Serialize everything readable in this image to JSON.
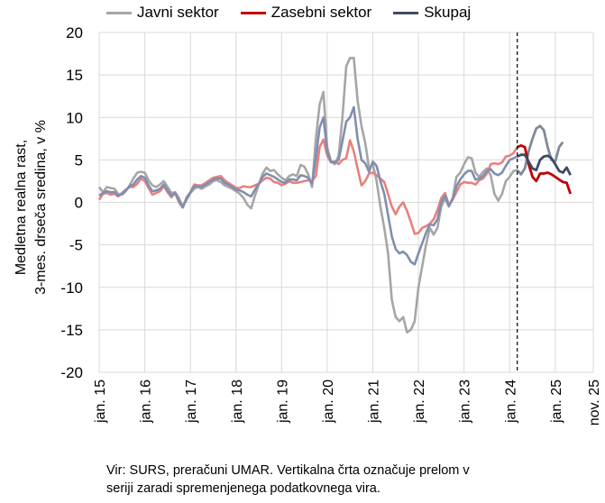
{
  "legend": {
    "javni": "Javni sektor",
    "zasebni": "Zasebni sektor",
    "skupaj": "Skupaj"
  },
  "ylabel_line1": "Medletna realna rast,",
  "ylabel_line2": "3-mes. drseča sredina, v %",
  "source_line1": "Vir: SURS, preračuni UMAR. Vertikalna črta označuje prelom v",
  "source_line2": "seriji zaradi spremenjenega podatkovnega vira.",
  "colors": {
    "javni_old": "#a6a6a6",
    "javni_new": "#808a99",
    "zasebni_old": "#e8817d",
    "zasebni_new": "#c00000",
    "skupaj_old": "#7f8fb0",
    "skupaj_new": "#3f4a66",
    "legend_javni": "#a6a6a6",
    "legend_zasebni": "#c00000",
    "legend_skupaj": "#3f4a66"
  },
  "chart_data": {
    "type": "line",
    "xlabel": "",
    "ylabel": "Medletna realna rast, 3-mes. drseča sredina, v %",
    "ylim": [
      -20,
      20
    ],
    "yticks": [
      20,
      15,
      10,
      5,
      0,
      -5,
      -10,
      -15,
      -20
    ],
    "x_start": "2015-01",
    "x_end": "2025-11",
    "xtick_labels": [
      "jan. 15",
      "jan. 16",
      "jan. 17",
      "jan. 18",
      "jan. 19",
      "jan. 20",
      "jan. 21",
      "jan. 22",
      "jan. 23",
      "jan. 24",
      "jan. 25",
      "nov. 25"
    ],
    "xtick_dates": [
      "2015-01",
      "2016-01",
      "2017-01",
      "2018-01",
      "2019-01",
      "2020-01",
      "2021-01",
      "2022-01",
      "2023-01",
      "2024-01",
      "2025-01",
      "2025-11"
    ],
    "break_date": "2024-03",
    "series": [
      {
        "name": "Javni sektor",
        "color_key": "javni",
        "values": [
          1.8,
          1.2,
          1.8,
          1.7,
          1.6,
          1.0,
          0.9,
          1.3,
          2.0,
          2.8,
          3.5,
          3.6,
          3.5,
          2.6,
          2.0,
          1.8,
          2.1,
          2.5,
          1.8,
          1.1,
          1.2,
          0.5,
          -0.5,
          0.3,
          1.1,
          1.6,
          1.8,
          1.6,
          1.9,
          2.1,
          2.5,
          2.6,
          2.4,
          2.0,
          1.8,
          1.6,
          1.3,
          1.0,
          0.5,
          -0.3,
          -0.7,
          0.8,
          2.1,
          3.4,
          4.1,
          3.7,
          3.8,
          3.3,
          2.9,
          2.6,
          3.1,
          3.3,
          3.1,
          4.4,
          4.2,
          3.3,
          1.8,
          7.5,
          11.5,
          13.0,
          6.5,
          4.8,
          4.5,
          5.5,
          10.0,
          16.0,
          17.0,
          17.0,
          12.0,
          9.0,
          7.0,
          4.0,
          4.5,
          2.5,
          -0.5,
          -3.0,
          -6.0,
          -11.5,
          -13.5,
          -14.0,
          -13.5,
          -15.3,
          -15.0,
          -14.0,
          -10.0,
          -7.5,
          -5.0,
          -3.0,
          -3.8,
          -3.0,
          -0.5,
          0.5,
          -0.5,
          0.5,
          3.0,
          3.5,
          4.5,
          5.3,
          5.2,
          3.5,
          3.0,
          3.6,
          4.0,
          3.2,
          1.0,
          0.2,
          1.0,
          2.5,
          3.0,
          3.7,
          3.8,
          3.3,
          4.0,
          6.0,
          7.5,
          8.7,
          9.0,
          8.5,
          6.5,
          5.0,
          4.8,
          6.5,
          7.1
        ]
      },
      {
        "name": "Zasebni sektor",
        "color_key": "zasebni",
        "values": [
          0.3,
          1.0,
          1.1,
          0.9,
          1.0,
          0.7,
          1.1,
          1.5,
          1.8,
          1.8,
          2.2,
          2.8,
          2.5,
          1.7,
          0.9,
          1.1,
          1.3,
          1.9,
          1.2,
          0.6,
          1.1,
          0.0,
          -0.6,
          0.6,
          1.2,
          2.1,
          2.0,
          2.0,
          2.3,
          2.6,
          2.9,
          3.0,
          3.1,
          2.6,
          2.3,
          2.0,
          1.7,
          1.7,
          1.9,
          1.8,
          1.8,
          2.0,
          2.2,
          2.6,
          2.9,
          2.8,
          2.4,
          2.3,
          2.0,
          2.2,
          2.5,
          2.3,
          2.3,
          2.4,
          2.5,
          2.6,
          2.5,
          3.1,
          6.5,
          7.4,
          5.5,
          4.7,
          4.8,
          4.5,
          5.0,
          5.2,
          7.3,
          6.0,
          4.0,
          2.0,
          2.5,
          3.4,
          3.5,
          3.2,
          2.8,
          2.4,
          1.0,
          -0.5,
          -1.4,
          -0.5,
          0.0,
          -1.0,
          -2.3,
          -3.7,
          -3.6,
          -3.0,
          -2.8,
          -2.5,
          -2.0,
          -0.9,
          0.5,
          1.1,
          -0.3,
          0.3,
          1.2,
          2.1,
          2.4,
          2.3,
          2.3,
          2.1,
          2.6,
          2.8,
          3.4,
          4.5,
          4.6,
          4.5,
          4.7,
          5.4,
          5.5,
          5.8,
          6.5,
          6.7,
          6.5,
          4.5,
          3.0,
          2.5,
          3.4,
          3.4,
          3.5,
          3.3,
          3.0,
          2.7,
          2.4,
          2.3,
          1.0
        ]
      },
      {
        "name": "Skupaj",
        "color_key": "skupaj",
        "values": [
          0.8,
          1.1,
          1.3,
          1.2,
          1.2,
          0.8,
          1.0,
          1.4,
          1.9,
          2.1,
          2.7,
          3.1,
          2.9,
          2.0,
          1.3,
          1.4,
          1.6,
          2.1,
          1.4,
          0.8,
          1.1,
          0.2,
          -0.6,
          0.5,
          1.2,
          1.9,
          1.9,
          1.8,
          2.1,
          2.4,
          2.7,
          2.8,
          2.8,
          2.3,
          2.1,
          1.8,
          1.5,
          1.4,
          1.2,
          0.9,
          0.7,
          1.5,
          2.2,
          3.0,
          3.4,
          3.2,
          3.0,
          2.7,
          2.4,
          2.3,
          2.7,
          2.7,
          2.6,
          3.2,
          3.1,
          2.9,
          2.2,
          5.2,
          8.8,
          10.0,
          6.0,
          4.8,
          4.7,
          5.0,
          7.2,
          9.5,
          10.0,
          11.2,
          7.5,
          5.0,
          4.6,
          3.6,
          4.8,
          4.3,
          2.5,
          1.0,
          -1.5,
          -4.0,
          -5.5,
          -6.0,
          -5.8,
          -6.2,
          -7.0,
          -7.3,
          -6.0,
          -4.8,
          -3.6,
          -2.6,
          -2.7,
          -2.0,
          0.0,
          0.8,
          -0.4,
          0.4,
          1.9,
          2.7,
          3.3,
          3.7,
          3.7,
          2.7,
          2.8,
          3.1,
          3.7,
          3.9,
          3.4,
          3.2,
          3.5,
          4.3,
          5.0,
          5.2,
          5.4,
          5.6,
          5.6,
          4.8,
          4.0,
          3.8,
          5.0,
          5.4,
          5.5,
          5.2,
          4.5,
          3.7,
          3.5,
          4.1,
          3.2
        ]
      }
    ]
  }
}
